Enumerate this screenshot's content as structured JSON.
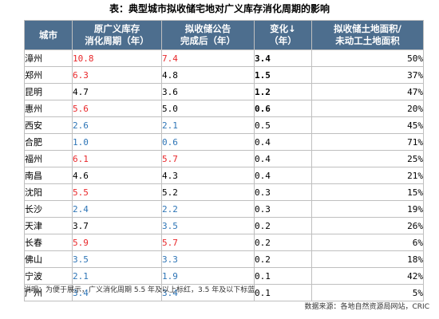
{
  "title": "表：典型城市拟收储宅地对广义库存消化周期的影响",
  "columns": [
    {
      "line1": "城市",
      "line2": ""
    },
    {
      "line1": "原广义库存",
      "line2": "消化周期（年）"
    },
    {
      "line1": "拟收储公告",
      "line2": "完成后（年）"
    },
    {
      "line1": "变化↓",
      "line2": "（年）"
    },
    {
      "line1": "拟收储土地面积/",
      "line2": "未动工土地面积"
    }
  ],
  "rows": [
    {
      "city": "漳州",
      "orig": "10.8",
      "orig_color": "red",
      "after": "7.4",
      "after_color": "red",
      "change": "3.4",
      "change_bold": true,
      "ratio": "50%"
    },
    {
      "city": "郑州",
      "orig": "6.3",
      "orig_color": "red",
      "after": "4.8",
      "after_color": "black",
      "change": "1.5",
      "change_bold": true,
      "ratio": "37%"
    },
    {
      "city": "昆明",
      "orig": "4.7",
      "orig_color": "black",
      "after": "3.6",
      "after_color": "black",
      "change": "1.2",
      "change_bold": true,
      "ratio": "47%"
    },
    {
      "city": "惠州",
      "orig": "5.6",
      "orig_color": "red",
      "after": "5.0",
      "after_color": "black",
      "change": "0.6",
      "change_bold": true,
      "ratio": "20%"
    },
    {
      "city": "西安",
      "orig": "2.6",
      "orig_color": "blue",
      "after": "2.1",
      "after_color": "blue",
      "change": "0.5",
      "change_bold": false,
      "ratio": "45%"
    },
    {
      "city": "合肥",
      "orig": "1.0",
      "orig_color": "blue",
      "after": "0.6",
      "after_color": "blue",
      "change": "0.4",
      "change_bold": false,
      "ratio": "71%"
    },
    {
      "city": "福州",
      "orig": "6.1",
      "orig_color": "red",
      "after": "5.7",
      "after_color": "red",
      "change": "0.4",
      "change_bold": false,
      "ratio": "25%"
    },
    {
      "city": "南昌",
      "orig": "4.6",
      "orig_color": "black",
      "after": "4.3",
      "after_color": "black",
      "change": "0.4",
      "change_bold": false,
      "ratio": "21%"
    },
    {
      "city": "沈阳",
      "orig": "5.5",
      "orig_color": "red",
      "after": "5.2",
      "after_color": "black",
      "change": "0.3",
      "change_bold": false,
      "ratio": "15%"
    },
    {
      "city": "长沙",
      "orig": "2.4",
      "orig_color": "blue",
      "after": "2.2",
      "after_color": "blue",
      "change": "0.3",
      "change_bold": false,
      "ratio": "19%"
    },
    {
      "city": "天津",
      "orig": "3.7",
      "orig_color": "black",
      "after": "3.5",
      "after_color": "blue",
      "change": "0.2",
      "change_bold": false,
      "ratio": "26%"
    },
    {
      "city": "长春",
      "orig": "5.9",
      "orig_color": "red",
      "after": "5.7",
      "after_color": "red",
      "change": "0.2",
      "change_bold": false,
      "ratio": "6%"
    },
    {
      "city": "佛山",
      "orig": "3.5",
      "orig_color": "blue",
      "after": "3.3",
      "after_color": "blue",
      "change": "0.2",
      "change_bold": false,
      "ratio": "18%"
    },
    {
      "city": "宁波",
      "orig": "2.1",
      "orig_color": "blue",
      "after": "1.9",
      "after_color": "blue",
      "change": "0.1",
      "change_bold": false,
      "ratio": "42%"
    },
    {
      "city": "广州",
      "orig": "3.4",
      "orig_color": "blue",
      "after": "3.4",
      "after_color": "blue",
      "change": "0.1",
      "change_bold": false,
      "ratio": "5%"
    }
  ],
  "note": "说明：为便于展示，广义消化周期 5.5 年及以上标红，3.5 年及以下标蓝",
  "source": "数据来源：各地自然资源局网站，CRIC",
  "colors": {
    "header_bg": "#4d6e8e",
    "red": "#e8272a",
    "blue": "#2e75b6",
    "grid": "#bfbfbf"
  }
}
